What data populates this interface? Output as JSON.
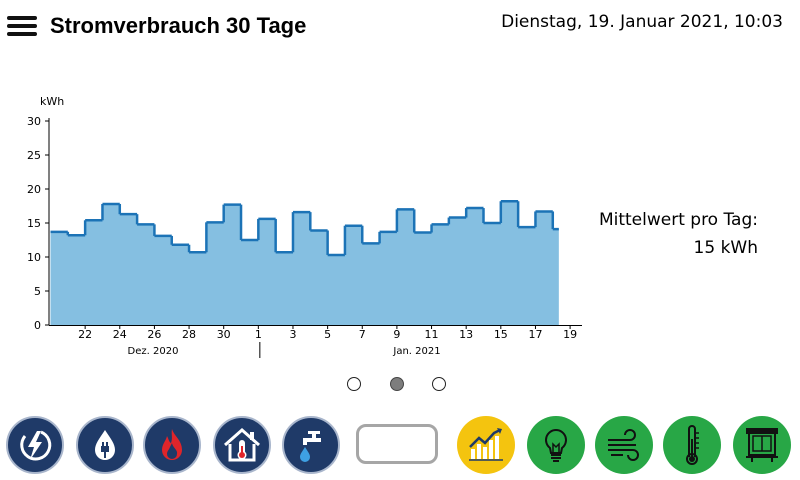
{
  "header": {
    "title": "Stromverbrauch 30 Tage",
    "datetime": "Dienstag, 19. Januar 2021, 10:03"
  },
  "stats": {
    "label": "Mittelwert pro Tag:",
    "value": "15 kWh"
  },
  "chart_data": {
    "type": "area",
    "ylabel": "kWh",
    "ylim": [
      0,
      30
    ],
    "yticks": [
      0,
      5,
      10,
      15,
      20,
      25,
      30
    ],
    "xticks": [
      "22",
      "24",
      "26",
      "28",
      "30",
      "1",
      "3",
      "5",
      "7",
      "9",
      "11",
      "13",
      "15",
      "17",
      "19"
    ],
    "month_labels": [
      "Dez. 2020",
      "Jan. 2021"
    ],
    "days": [
      "20.12",
      "21.12",
      "22.12",
      "23.12",
      "24.12",
      "25.12",
      "26.12",
      "27.12",
      "28.12",
      "29.12",
      "30.12",
      "31.12",
      "01.01",
      "02.01",
      "03.01",
      "04.01",
      "05.01",
      "06.01",
      "07.01",
      "08.01",
      "09.01",
      "10.01",
      "11.01",
      "12.01",
      "13.01",
      "14.01",
      "15.01",
      "16.01",
      "17.01",
      "18.01"
    ],
    "values": [
      13.7,
      13.2,
      15.4,
      17.8,
      16.3,
      14.8,
      13.1,
      11.8,
      10.7,
      15.1,
      17.7,
      12.5,
      15.6,
      10.7,
      16.6,
      13.9,
      10.3,
      14.6,
      12.0,
      13.7,
      17.0,
      13.6,
      14.8,
      15.8,
      17.2,
      15.0,
      18.2,
      14.4,
      16.7,
      14.1
    ],
    "colors": {
      "fill": "#85bfe1",
      "line": "#1c73b6"
    }
  },
  "pager": {
    "pages": 3,
    "active": 2
  },
  "bottom_bar": {
    "buttons": [
      {
        "name": "power-button",
        "icon": "lightning-icon"
      },
      {
        "name": "water-power-button",
        "icon": "water-drop-plug-icon"
      },
      {
        "name": "gas-button",
        "icon": "flame-icon"
      },
      {
        "name": "house-temp-button",
        "icon": "house-thermometer-icon"
      },
      {
        "name": "water-tap-button",
        "icon": "tap-icon"
      },
      {
        "name": "empty-button",
        "icon": ""
      },
      {
        "name": "chart-button",
        "icon": "chart-icon"
      },
      {
        "name": "light-button",
        "icon": "lightbulb-icon"
      },
      {
        "name": "wind-button",
        "icon": "wind-icon"
      },
      {
        "name": "thermometer-button",
        "icon": "thermometer-icon"
      },
      {
        "name": "window-button",
        "icon": "window-icon"
      }
    ],
    "colors": {
      "blue": "#1f3a68",
      "gold": "#f4c40f",
      "green": "#28a746"
    }
  }
}
